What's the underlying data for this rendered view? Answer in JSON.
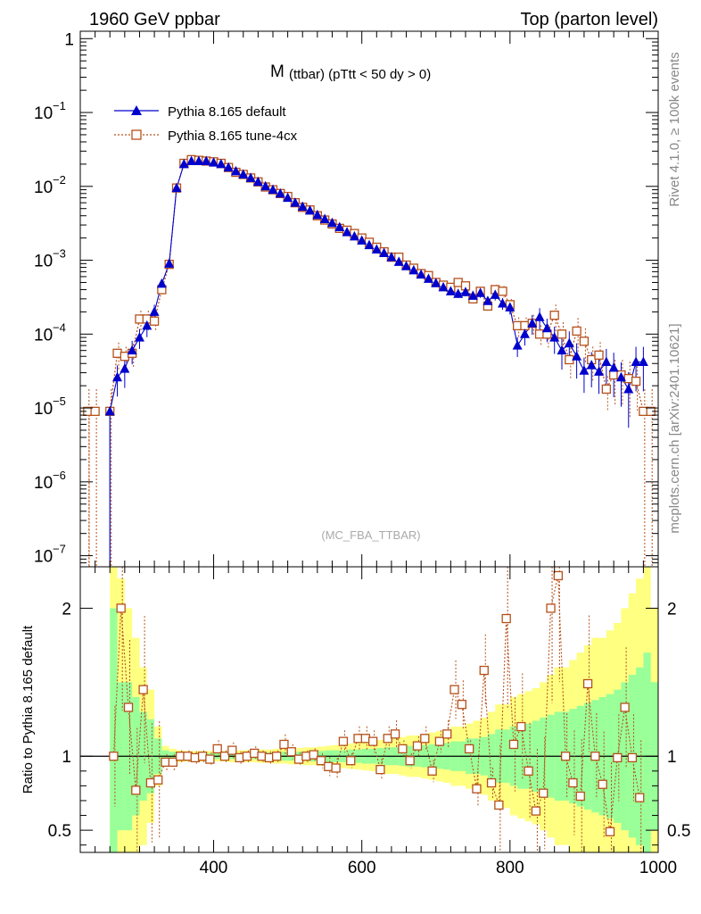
{
  "header": {
    "left": "1960 GeV ppbar",
    "right": "Top (parton level)"
  },
  "side_labels": {
    "top": "Rivet 4.1.0, ≥ 100k events",
    "bottom": "mcplots.cern.ch [arXiv:2401.10621]"
  },
  "chart_data": {
    "type": "line",
    "title_main": "M",
    "title_sub": "(ttbar) (pTtt < 50 dy > 0)",
    "watermark": "(MC_FBA_TTBAR)",
    "xlabel": "",
    "ylabel_ratio": "Ratio to Pythia 8.165 default",
    "xlim": [
      220,
      1000
    ],
    "ylim_log": [
      -7.15,
      0.1
    ],
    "ratio_ylim": [
      0.35,
      2.28
    ],
    "x_ticks": [
      "400",
      "600",
      "800",
      "1000"
    ],
    "y_ticks": [
      {
        "base": "1",
        "exp": ""
      },
      {
        "base": "10",
        "exp": "−1"
      },
      {
        "base": "10",
        "exp": "−2"
      },
      {
        "base": "10",
        "exp": "−3"
      },
      {
        "base": "10",
        "exp": "−4"
      },
      {
        "base": "10",
        "exp": "−5"
      },
      {
        "base": "10",
        "exp": "−6"
      },
      {
        "base": "10",
        "exp": "−7"
      }
    ],
    "ratio_ticks": [
      "0.5",
      "1",
      "2"
    ],
    "colors": {
      "default": "#0000cc",
      "tune": "#b5501a",
      "band_inner": "#99ff99",
      "band_outer": "#ffff80"
    },
    "x": [
      230,
      240,
      250,
      260,
      270,
      280,
      290,
      300,
      310,
      320,
      330,
      340,
      350,
      360,
      370,
      380,
      390,
      400,
      410,
      420,
      430,
      440,
      450,
      460,
      470,
      480,
      490,
      500,
      510,
      520,
      530,
      540,
      550,
      560,
      570,
      580,
      590,
      600,
      610,
      620,
      630,
      640,
      650,
      660,
      670,
      680,
      690,
      700,
      710,
      720,
      730,
      740,
      750,
      760,
      770,
      780,
      790,
      800,
      810,
      820,
      830,
      840,
      850,
      860,
      870,
      880,
      890,
      900,
      910,
      920,
      930,
      940,
      950,
      960,
      970,
      980,
      990
    ],
    "series": [
      {
        "name": "Pythia 8.165 default",
        "marker": "triangle",
        "values": [
          null,
          null,
          null,
          9e-06,
          2.6e-05,
          3.4e-05,
          6e-05,
          9e-05,
          0.00013,
          0.0002,
          0.00048,
          0.0009,
          0.0095,
          0.02,
          0.022,
          0.022,
          0.022,
          0.021,
          0.02,
          0.018,
          0.016,
          0.0145,
          0.013,
          0.0115,
          0.01,
          0.009,
          0.008,
          0.007,
          0.006,
          0.0053,
          0.0047,
          0.0041,
          0.0036,
          0.0032,
          0.0028,
          0.0024,
          0.0021,
          0.00185,
          0.0016,
          0.0014,
          0.00125,
          0.0011,
          0.00095,
          0.00083,
          0.00073,
          0.00064,
          0.00056,
          0.00049,
          0.00043,
          0.00038,
          0.00035,
          0.00037,
          0.00033,
          0.00036,
          0.00028,
          0.00034,
          0.00026,
          0.00023,
          7e-05,
          0.0001,
          0.00014,
          0.00017,
          0.00012,
          9e-05,
          6e-05,
          7.5e-05,
          5e-05,
          3.2e-05,
          3.8e-05,
          3.1e-05,
          4.2e-05,
          3.5e-05,
          2.6e-05,
          1.8e-05,
          4.2e-05,
          4.2e-05,
          null
        ],
        "err_frac": [
          0,
          0,
          0,
          0,
          0.45,
          0.45,
          0.35,
          0.3,
          0.3,
          0.25,
          0.15,
          0.12,
          0.05,
          0.03,
          0.03,
          0.03,
          0.03,
          0.03,
          0.03,
          0.03,
          0.03,
          0.03,
          0.03,
          0.03,
          0.03,
          0.03,
          0.03,
          0.03,
          0.04,
          0.04,
          0.04,
          0.04,
          0.04,
          0.05,
          0.05,
          0.05,
          0.06,
          0.06,
          0.06,
          0.07,
          0.07,
          0.07,
          0.08,
          0.08,
          0.09,
          0.09,
          0.1,
          0.1,
          0.11,
          0.11,
          0.12,
          0.12,
          0.13,
          0.14,
          0.16,
          0.16,
          0.18,
          0.2,
          0.3,
          0.3,
          0.3,
          0.32,
          0.35,
          0.4,
          0.45,
          0.45,
          0.5,
          0.5,
          0.5,
          0.5,
          0.5,
          0.6,
          0.6,
          0.7,
          0.6,
          0.6,
          0
        ]
      },
      {
        "name": "Pythia 8.165 tune-4cx",
        "marker": "open-square",
        "values": [
          9e-06,
          9e-06,
          null,
          9e-06,
          5.5e-05,
          5e-05,
          5.5e-05,
          0.00016,
          0.00016,
          0.00015,
          0.0004,
          0.00088,
          0.0095,
          0.0205,
          0.023,
          0.0225,
          0.022,
          0.0215,
          0.0205,
          0.018,
          0.0155,
          0.0145,
          0.013,
          0.0115,
          0.0098,
          0.009,
          0.008,
          0.0073,
          0.006,
          0.0052,
          0.0048,
          0.004,
          0.0035,
          0.0031,
          0.0027,
          0.00255,
          0.0023,
          0.002,
          0.00175,
          0.0015,
          0.0013,
          0.0011,
          0.0011,
          0.00086,
          0.00078,
          0.00066,
          0.00062,
          0.0005,
          0.00046,
          0.00043,
          0.0005,
          0.00045,
          0.0003,
          0.00038,
          0.00024,
          0.0004,
          0.00038,
          0.00025,
          0.00013,
          0.00013,
          0.00014,
          0.0001,
          0.0001,
          0.00018,
          0.0001,
          4.5e-05,
          0.00011,
          8e-05,
          4.5e-05,
          5.2e-05,
          1.8e-05,
          2.8e-05,
          2.8e-05,
          2.5e-05,
          2.3e-05,
          9e-06,
          9e-06
        ],
        "err_frac": [
          1,
          1,
          0,
          1,
          0.4,
          0.35,
          0.35,
          0.3,
          0.3,
          0.25,
          0.15,
          0.12,
          0.05,
          0.03,
          0.03,
          0.03,
          0.03,
          0.03,
          0.03,
          0.03,
          0.03,
          0.03,
          0.03,
          0.03,
          0.03,
          0.03,
          0.03,
          0.03,
          0.04,
          0.04,
          0.04,
          0.04,
          0.04,
          0.05,
          0.05,
          0.05,
          0.06,
          0.06,
          0.06,
          0.07,
          0.07,
          0.07,
          0.08,
          0.08,
          0.09,
          0.09,
          0.1,
          0.1,
          0.11,
          0.11,
          0.12,
          0.12,
          0.13,
          0.14,
          0.16,
          0.16,
          0.18,
          0.2,
          0.3,
          0.3,
          0.3,
          0.32,
          0.35,
          0.4,
          0.45,
          0.45,
          0.5,
          0.5,
          0.5,
          0.5,
          0.5,
          0.6,
          0.6,
          0.7,
          0.6,
          1,
          1
        ]
      }
    ],
    "ratio": {
      "x": [
        265,
        275,
        285,
        295,
        305,
        315,
        325,
        335,
        345,
        355,
        365,
        375,
        385,
        395,
        405,
        415,
        425,
        435,
        445,
        455,
        465,
        475,
        485,
        495,
        505,
        515,
        525,
        535,
        545,
        555,
        565,
        575,
        585,
        595,
        605,
        615,
        625,
        635,
        645,
        655,
        665,
        675,
        685,
        695,
        705,
        715,
        725,
        735,
        745,
        755,
        765,
        775,
        785,
        795,
        805,
        815,
        825,
        835,
        845,
        855,
        865,
        875,
        885,
        895,
        905,
        915,
        925,
        935,
        945,
        955,
        965,
        975
      ],
      "values": [
        1.0,
        2.0,
        1.33,
        0.77,
        1.45,
        0.82,
        0.84,
        0.96,
        0.96,
        1.0,
        1.0,
        0.99,
        1.0,
        0.98,
        1.05,
        1.0,
        1.04,
        0.99,
        1.0,
        1.02,
        1.0,
        0.99,
        1.0,
        1.08,
        1.03,
        0.98,
        1.0,
        1.01,
        0.97,
        0.93,
        0.92,
        1.1,
        0.97,
        1.12,
        1.12,
        1.1,
        0.91,
        1.12,
        1.15,
        1.05,
        0.97,
        1.07,
        1.12,
        0.9,
        1.1,
        1.15,
        1.45,
        1.35,
        1.05,
        0.78,
        1.58,
        0.82,
        0.67,
        1.93,
        1.08,
        1.2,
        0.9,
        0.63,
        0.75,
        2.0,
        2.22,
        1.0,
        0.82,
        0.73,
        1.49,
        1.0,
        0.81,
        0.49,
        0.99,
        1.33,
        0.99,
        0.72
      ]
    },
    "band": {
      "x": [
        260,
        270,
        280,
        290,
        300,
        310,
        320,
        330,
        340,
        350,
        360,
        370,
        380,
        390,
        400,
        410,
        420,
        430,
        440,
        450,
        460,
        470,
        480,
        490,
        500,
        510,
        520,
        530,
        540,
        550,
        560,
        570,
        580,
        590,
        600,
        610,
        620,
        630,
        640,
        650,
        660,
        670,
        680,
        690,
        700,
        710,
        720,
        730,
        740,
        750,
        760,
        770,
        780,
        790,
        800,
        810,
        820,
        830,
        840,
        850,
        860,
        870,
        880,
        890,
        900,
        910,
        920,
        930,
        940,
        950,
        960,
        970,
        980,
        990,
        1000
      ],
      "inner": [
        1.0,
        0.5,
        0.5,
        0.4,
        0.3,
        0.25,
        0.12,
        0.04,
        0.03,
        0.02,
        0.02,
        0.02,
        0.02,
        0.02,
        0.02,
        0.02,
        0.02,
        0.02,
        0.02,
        0.02,
        0.025,
        0.025,
        0.025,
        0.03,
        0.03,
        0.03,
        0.03,
        0.035,
        0.035,
        0.04,
        0.04,
        0.04,
        0.045,
        0.045,
        0.05,
        0.05,
        0.055,
        0.06,
        0.06,
        0.065,
        0.07,
        0.07,
        0.075,
        0.08,
        0.085,
        0.09,
        0.1,
        0.1,
        0.12,
        0.12,
        0.13,
        0.15,
        0.18,
        0.18,
        0.2,
        0.22,
        0.22,
        0.24,
        0.26,
        0.28,
        0.3,
        0.3,
        0.32,
        0.34,
        0.36,
        0.38,
        0.4,
        0.42,
        0.45,
        0.5,
        0.55,
        0.6,
        0.7,
        0.5
      ],
      "outer": [
        1.4,
        1.2,
        1.0,
        0.8,
        0.6,
        0.45,
        0.2,
        0.07,
        0.05,
        0.04,
        0.035,
        0.035,
        0.035,
        0.035,
        0.035,
        0.035,
        0.04,
        0.04,
        0.04,
        0.04,
        0.045,
        0.045,
        0.05,
        0.05,
        0.055,
        0.055,
        0.06,
        0.06,
        0.065,
        0.07,
        0.075,
        0.08,
        0.085,
        0.09,
        0.095,
        0.1,
        0.11,
        0.12,
        0.12,
        0.13,
        0.14,
        0.14,
        0.15,
        0.16,
        0.17,
        0.18,
        0.2,
        0.2,
        0.22,
        0.24,
        0.26,
        0.3,
        0.35,
        0.35,
        0.4,
        0.42,
        0.44,
        0.46,
        0.5,
        0.55,
        0.6,
        0.6,
        0.65,
        0.7,
        0.75,
        0.8,
        0.8,
        0.85,
        0.9,
        1.0,
        1.1,
        1.2,
        1.4,
        1.0
      ]
    }
  }
}
